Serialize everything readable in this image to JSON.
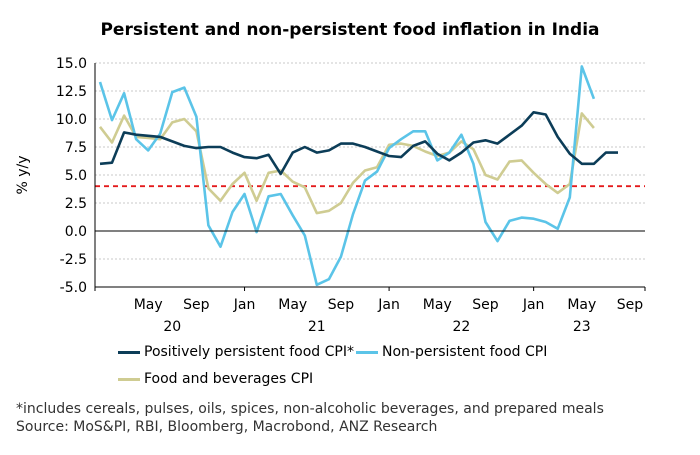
{
  "chart_data": {
    "type": "line",
    "title": "Persistent and non-persistent food inflation in India",
    "ylabel": "% y/y",
    "ylim": [
      -5.0,
      15.0
    ],
    "yticks": [
      "15.0",
      "12.5",
      "10.0",
      "7.5",
      "5.0",
      "2.5",
      "0.0",
      "-2.5",
      "-5.0"
    ],
    "xtick_months": [
      "May",
      "Sep",
      "Jan",
      "May",
      "Sep",
      "Jan",
      "May",
      "Sep",
      "Jan",
      "May",
      "Sep"
    ],
    "xtick_years": [
      "20",
      "21",
      "22",
      "23"
    ],
    "x_start": "2020-01",
    "x_end": "2023-09",
    "reference_line": {
      "value": 4.0,
      "color": "#e41a1c"
    },
    "series": [
      {
        "name": "Positively persistent food CPI*",
        "color": "#0c3d58",
        "values": [
          6.0,
          6.1,
          8.8,
          8.6,
          8.5,
          8.4,
          8.0,
          7.6,
          7.4,
          7.5,
          7.5,
          7.0,
          6.6,
          6.5,
          6.8,
          5.1,
          7.0,
          7.5,
          7.0,
          7.2,
          7.8,
          7.8,
          7.5,
          7.1,
          6.7,
          6.6,
          7.6,
          8.0,
          6.9,
          6.3,
          7.0,
          7.9,
          8.1,
          7.8,
          8.6,
          9.4,
          10.6,
          10.4,
          8.4,
          6.9,
          6.0,
          6.0,
          7.0,
          7.0
        ]
      },
      {
        "name": "Non-persistent food CPI",
        "color": "#5bc4e8",
        "values": [
          13.3,
          9.9,
          12.3,
          8.2,
          7.2,
          8.7,
          12.4,
          12.8,
          10.2,
          0.5,
          -1.4,
          1.7,
          3.3,
          -0.1,
          3.1,
          3.3,
          1.4,
          -0.4,
          -4.8,
          -4.3,
          -2.3,
          1.5,
          4.5,
          5.3,
          7.4,
          8.2,
          8.9,
          8.9,
          6.3,
          7.0,
          8.6,
          6.0,
          0.8,
          -0.9,
          0.9,
          1.2,
          1.1,
          0.8,
          0.2,
          3.0,
          14.7,
          11.8
        ]
      },
      {
        "name": "Food and beverages CPI",
        "color": "#cfcc92",
        "values": [
          9.3,
          7.9,
          10.3,
          8.4,
          8.3,
          8.2,
          9.7,
          10.0,
          8.9,
          3.8,
          2.7,
          4.2,
          5.2,
          2.7,
          5.2,
          5.4,
          4.4,
          3.9,
          1.6,
          1.8,
          2.5,
          4.3,
          5.4,
          5.7,
          7.7,
          7.8,
          7.6,
          7.1,
          6.7,
          7.0,
          8.0,
          7.3,
          5.0,
          4.6,
          6.2,
          6.3,
          5.2,
          4.2,
          3.4,
          4.2,
          10.5,
          9.2
        ]
      }
    ],
    "notes": [
      "*includes cereals, pulses, oils, spices, non-alcoholic beverages, and prepared meals",
      "Source: MoS&PI, RBI, Bloomberg, Macrobond, ANZ Research"
    ]
  }
}
